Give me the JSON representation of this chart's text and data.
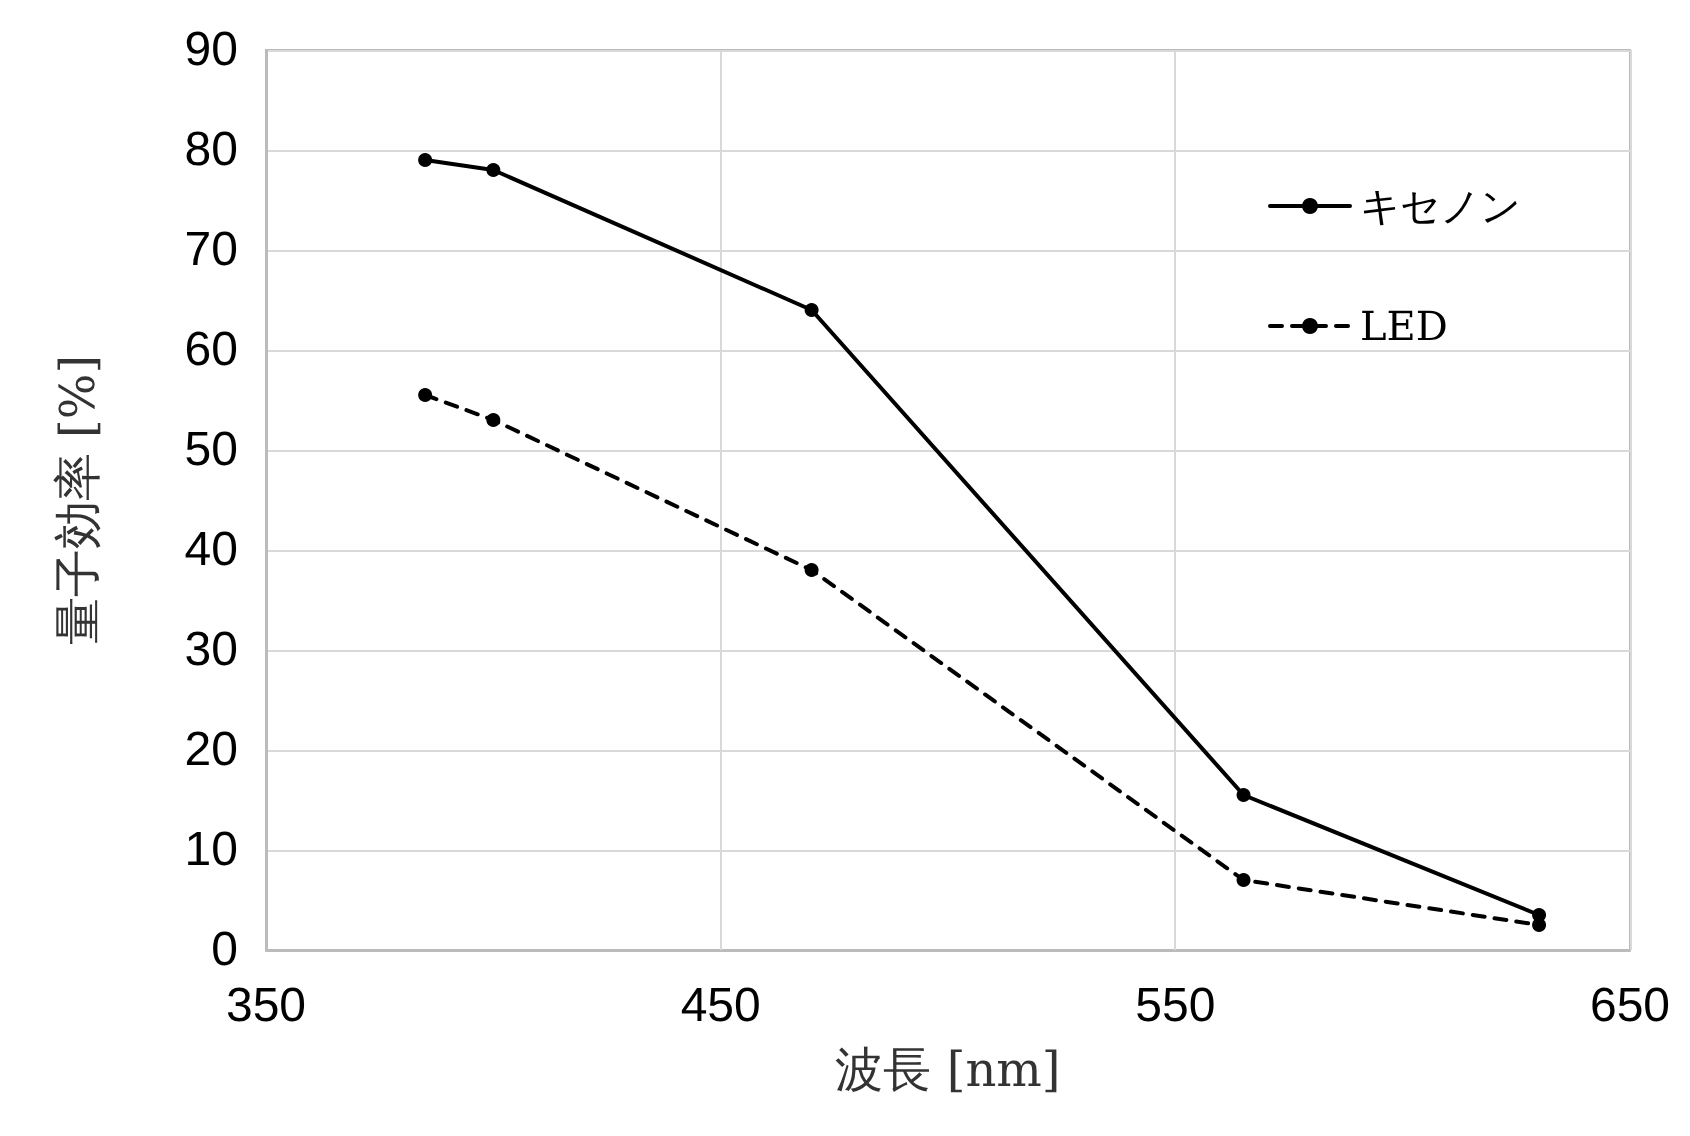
{
  "chart_data": {
    "type": "line",
    "xlabel": "波長 [nm]",
    "ylabel": "量子効率 [%]",
    "x": [
      385,
      400,
      470,
      565,
      630
    ],
    "series": [
      {
        "name": "キセノン",
        "color": "#000000",
        "values": [
          79,
          78,
          64,
          15.5,
          3.5
        ],
        "line_style": "solid"
      },
      {
        "name": "LED",
        "color": "#000000",
        "values": [
          55.5,
          53,
          38,
          7,
          2.5
        ],
        "line_style": "dashed"
      }
    ],
    "xlim": [
      350,
      650
    ],
    "xticks": [
      350,
      450,
      550,
      650
    ],
    "ylim": [
      0,
      90
    ],
    "yticks": [
      0,
      10,
      20,
      30,
      40,
      50,
      60,
      70,
      80,
      90
    ],
    "grid": true,
    "legend": "top right",
    "marker": "circle"
  }
}
